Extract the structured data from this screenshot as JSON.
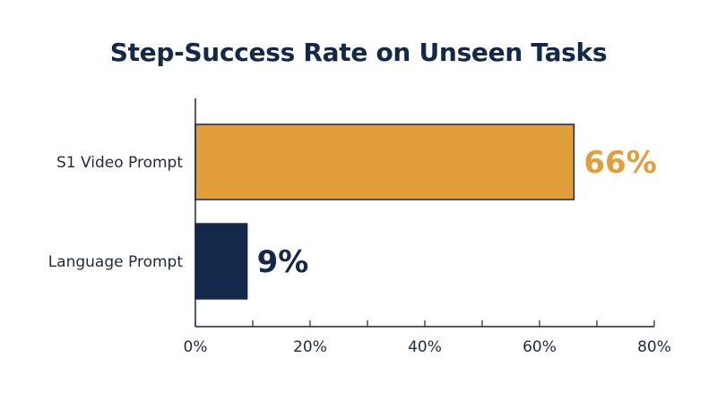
{
  "chart_data": {
    "type": "bar",
    "orientation": "horizontal",
    "title": "Step-Success Rate on Unseen Tasks",
    "categories": [
      "S1 Video Prompt",
      "Language Prompt"
    ],
    "values": [
      66,
      9
    ],
    "value_labels": [
      "66%",
      "9%"
    ],
    "xlim": [
      0,
      80
    ],
    "x_ticks": [
      0,
      20,
      40,
      60,
      80
    ],
    "x_tick_labels": [
      "0%",
      "20%",
      "40%",
      "60%",
      "80%"
    ],
    "grid": false,
    "legend": "none",
    "colors": {
      "bars": [
        "#e39e3c",
        "#14284b"
      ],
      "value_labels": [
        "#e39e3c",
        "#14284b"
      ],
      "title": "#14284b",
      "axis": "#14284b"
    }
  }
}
